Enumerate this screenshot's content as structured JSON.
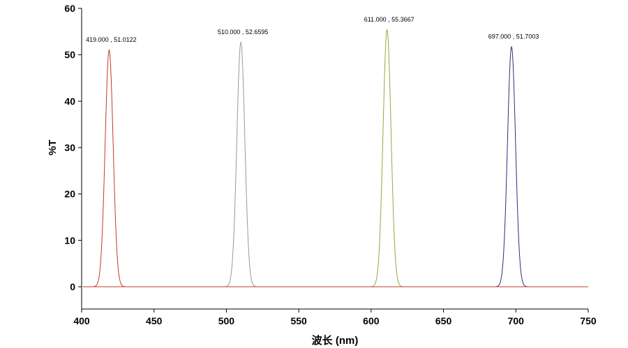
{
  "chart_data": {
    "type": "line",
    "xlabel": "波长 (nm)",
    "ylabel": "%T",
    "xlim": [
      400,
      750
    ],
    "ylim": [
      0,
      60
    ],
    "x_ticks": [
      400,
      450,
      500,
      550,
      600,
      650,
      700,
      750
    ],
    "y_ticks": [
      0,
      10,
      20,
      30,
      40,
      50,
      60
    ],
    "grid": false,
    "series": [
      {
        "color": "#c0392b",
        "peak_x": 419.0,
        "peak_y": 51.0122,
        "fwhm": 6.5
      },
      {
        "color": "#999999",
        "peak_x": 510.0,
        "peak_y": 52.6595,
        "fwhm": 6.5
      },
      {
        "color": "#9aa63a",
        "peak_x": 611.0,
        "peak_y": 55.3667,
        "fwhm": 6.5
      },
      {
        "color": "#2e2e7a",
        "peak_x": 697.0,
        "peak_y": 51.7003,
        "fwhm": 6.5
      }
    ],
    "annotations": [
      {
        "text": "419.000 , 51.0122",
        "x": 419.0,
        "y": 51.0122
      },
      {
        "text": "510.000 , 52.6595",
        "x": 510.0,
        "y": 52.6595
      },
      {
        "text": "611.000 , 55.3667",
        "x": 611.0,
        "y": 55.3667
      },
      {
        "text": "697.000 , 51.7003",
        "x": 697.0,
        "y": 51.7003
      }
    ]
  }
}
